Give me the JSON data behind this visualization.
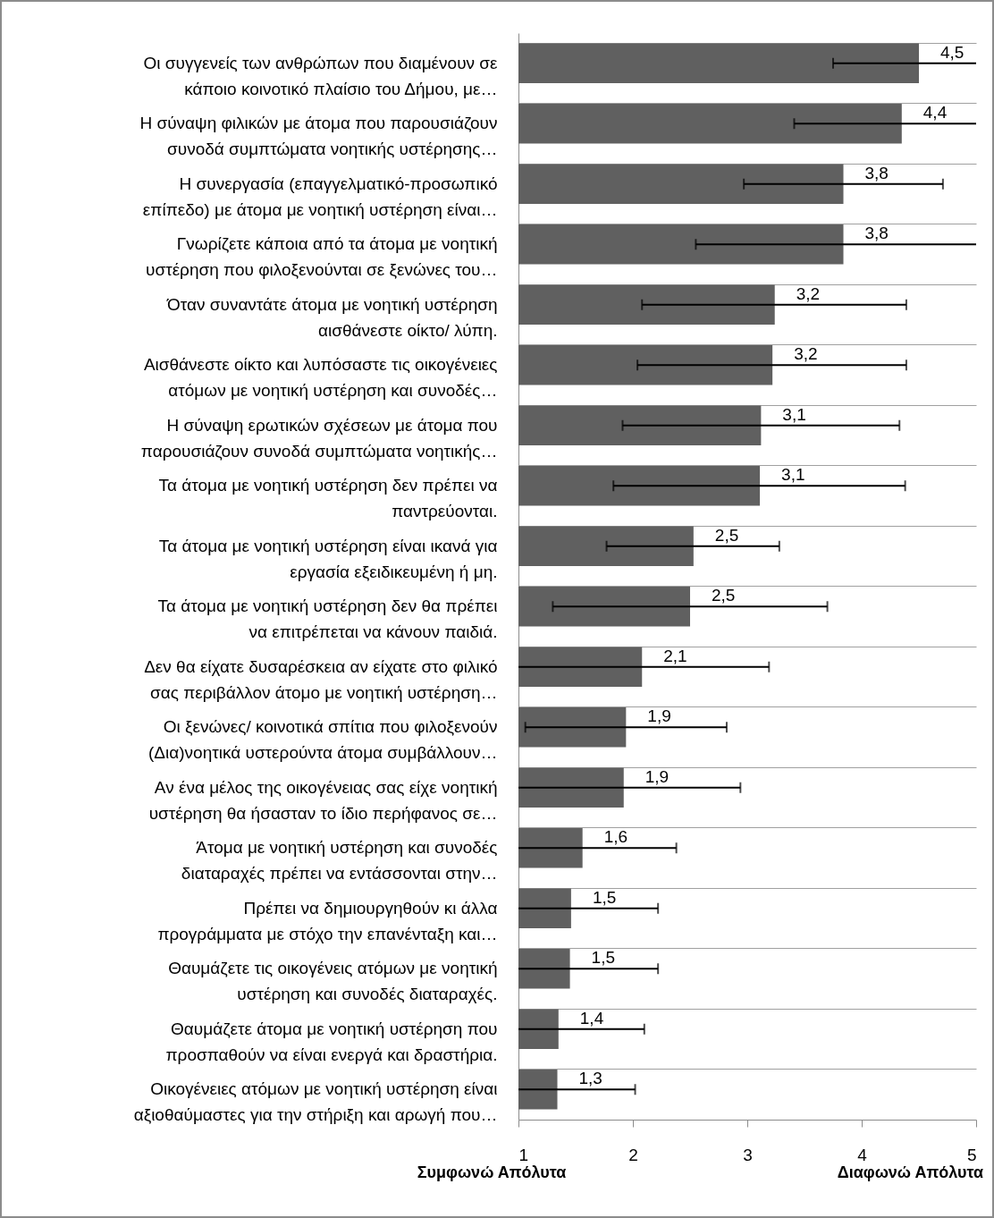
{
  "chart_data": {
    "type": "bar",
    "orientation": "horizontal",
    "color": "#606060",
    "grid": "y",
    "data_labels": false,
    "categories": [
      "Οι συγγενείς των ανθρώπων που διαμένουν σε\nκάποιο κοινοτικό πλαίσιο του Δήμου, με…",
      "Η σύναψη φιλικών με άτομα που παρουσιάζουν\nσυνοδά συμπτώματα νοητικής υστέρησης…",
      "Η συνεργασία (επαγγελματικό-προσωπικό\nεπίπεδο) με άτομα με νοητική υστέρηση είναι…",
      "Γνωρίζετε κάποια από τα άτομα με νοητική\nυστέρηση που φιλοξενούνται σε ξενώνες του…",
      "Όταν συναντάτε άτομα με νοητική υστέρηση\nαισθάνεστε οίκτο/ λύπη.",
      "Αισθάνεστε οίκτο και λυπόσαστε τις οικογένειες\nατόμων με νοητική υστέρηση και συνοδές…",
      "Η σύναψη ερωτικών σχέσεων με άτομα που\nπαρουσιάζουν συνοδά συμπτώματα νοητικής…",
      "Τα άτομα με νοητική υστέρηση δεν πρέπει να\nπαντρεύονται.",
      "Τα άτομα με νοητική υστέρηση είναι ικανά για\nεργασία εξειδικευμένη ή μη.",
      "Τα άτομα με νοητική υστέρηση δεν θα πρέπει\nνα επιτρέπεται να κάνουν παιδιά.",
      "Δεν θα είχατε δυσαρέσκεια αν είχατε στο φιλικό\nσας περιβάλλον άτομο με νοητική υστέρηση…",
      "Οι ξενώνες/ κοινοτικά σπίτια που φιλοξενούν\n(Δια)νοητικά υστερούντα άτομα συμβάλλουν…",
      "Αν ένα μέλος της οικογένειας σας είχε νοητική\nυστέρηση θα ήσασταν το ίδιο περήφανος σε…",
      "Άτομα με νοητική υστέρηση και συνοδές\nδιαταραχές πρέπει να εντάσσονται στην…",
      "Πρέπει να δημιουργηθούν κι άλλα\nπρογράμματα με στόχο την επανένταξη και…",
      "Θαυμάζετε τις οικογένεις ατόμων με νοητική\nυστέρηση και συνοδές διαταραχές.",
      "Θαυμάζετε άτομα με νοητική υστέρηση που\nπροσπαθούν να είναι ενεργά και δραστήρια.",
      "Οικογένειες ατόμων με νοητική υστέρηση είναι\nαξιοθαύμαστες για την στήριξη και αρωγή που…"
    ],
    "values": [
      4.5,
      4.35,
      3.84,
      3.84,
      3.24,
      3.22,
      3.12,
      3.11,
      2.53,
      2.5,
      2.08,
      1.94,
      1.92,
      1.56,
      1.46,
      1.45,
      1.35,
      1.34
    ],
    "value_labels": [
      "4,5",
      "4,4",
      "3,8",
      "3,8",
      "3,2",
      "3,2",
      "3,1",
      "3,1",
      "2,5",
      "2,5",
      "2,1",
      "1,9",
      "1,9",
      "1,6",
      "1,5",
      "1,5",
      "1,4",
      "1,3"
    ],
    "errors": [
      [
        3.75,
        5
      ],
      [
        3.41,
        5
      ],
      [
        2.97,
        4.71
      ],
      [
        2.55,
        5
      ],
      [
        2.08,
        4.39
      ],
      [
        2.04,
        4.39
      ],
      [
        1.91,
        4.33
      ],
      [
        1.83,
        4.38
      ],
      [
        1.77,
        3.28
      ],
      [
        1.3,
        3.7
      ],
      [
        1,
        3.19
      ],
      [
        1.06,
        2.82
      ],
      [
        1,
        2.94
      ],
      [
        1,
        2.38
      ],
      [
        1,
        2.22
      ],
      [
        1,
        2.22
      ],
      [
        1,
        2.1
      ],
      [
        1,
        2.02
      ]
    ],
    "xlim": [
      1,
      5
    ],
    "xticks": [
      1,
      2,
      3,
      4,
      5
    ],
    "annotations": [
      "Συμφωνώ Απόλυτα",
      "Διαφωνώ Απόλυτα"
    ]
  }
}
